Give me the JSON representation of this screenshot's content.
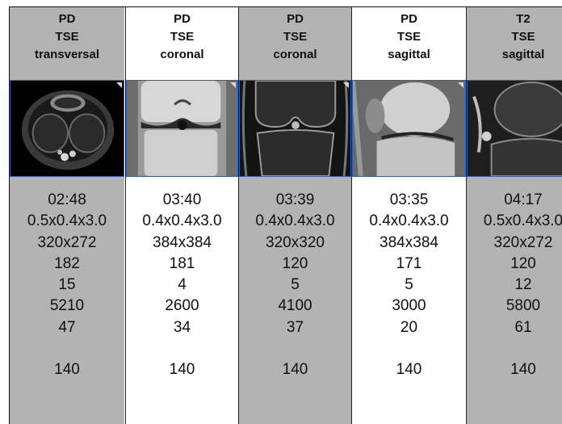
{
  "columns": [
    {
      "header": [
        "PD",
        "TSE",
        "transversal"
      ],
      "thumbnail_icon": "mri-knee-transversal-image",
      "values": [
        "02:48",
        "0.5x0.4x3.0",
        "320x272",
        "182",
        "15",
        "5210",
        "47",
        "",
        "140"
      ]
    },
    {
      "header": [
        "PD",
        "TSE",
        "coronal"
      ],
      "thumbnail_icon": "mri-knee-coronal-image",
      "values": [
        "03:40",
        "0.4x0.4x3.0",
        "384x384",
        "181",
        "4",
        "2600",
        "34",
        "",
        "140"
      ]
    },
    {
      "header": [
        "PD",
        "TSE",
        "coronal"
      ],
      "thumbnail_icon": "mri-knee-coronal-fatsat-image",
      "values": [
        "03:39",
        "0.4x0.4x3.0",
        "320x320",
        "120",
        "5",
        "4100",
        "37",
        "",
        "140"
      ]
    },
    {
      "header": [
        "PD",
        "TSE",
        "sagittal"
      ],
      "thumbnail_icon": "mri-knee-sagittal-image",
      "values": [
        "03:35",
        "0.4x0.4x3.0",
        "384x384",
        "171",
        "5",
        "3000",
        "20",
        "",
        "140"
      ]
    },
    {
      "header": [
        "T2",
        "TSE",
        "sagittal"
      ],
      "thumbnail_icon": "mri-knee-sagittal-t2-image",
      "values": [
        "04:17",
        "0.5x0.4x3.0",
        "320x272",
        "120",
        "12",
        "5800",
        "61",
        "",
        "140"
      ]
    }
  ],
  "colors": {
    "gray_column": "#b3b3b3",
    "white_column": "#ffffff",
    "thumbnail_border": "#2f5fb5"
  }
}
